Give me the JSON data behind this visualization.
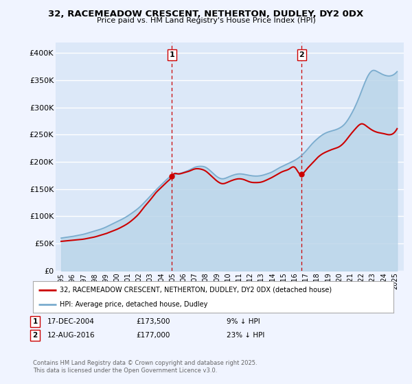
{
  "title": "32, RACEMEADOW CRESCENT, NETHERTON, DUDLEY, DY2 0DX",
  "subtitle": "Price paid vs. HM Land Registry's House Price Index (HPI)",
  "legend_label_red": "32, RACEMEADOW CRESCENT, NETHERTON, DUDLEY, DY2 0DX (detached house)",
  "legend_label_blue": "HPI: Average price, detached house, Dudley",
  "marker1_date": "17-DEC-2004",
  "marker1_price": 173500,
  "marker1_note": "9% ↓ HPI",
  "marker2_date": "12-AUG-2016",
  "marker2_price": 177000,
  "marker2_note": "23% ↓ HPI",
  "ylim": [
    0,
    420000
  ],
  "yticks": [
    0,
    50000,
    100000,
    150000,
    200000,
    250000,
    300000,
    350000,
    400000
  ],
  "ytick_labels": [
    "£0",
    "£50K",
    "£100K",
    "£150K",
    "£200K",
    "£250K",
    "£300K",
    "£350K",
    "£400K"
  ],
  "bg_color": "#f0f4ff",
  "plot_bg_color": "#dce8f8",
  "grid_color": "#ffffff",
  "red_color": "#cc0000",
  "blue_color": "#7aacce",
  "blue_fill_color": "#b8d4e8",
  "vline_color": "#cc0000",
  "footer": "Contains HM Land Registry data © Crown copyright and database right 2025.\nThis data is licensed under the Open Government Licence v3.0.",
  "hpi_x": [
    1995.0,
    1995.5,
    1996.0,
    1996.5,
    1997.0,
    1997.5,
    1998.0,
    1998.5,
    1999.0,
    1999.5,
    2000.0,
    2000.5,
    2001.0,
    2001.5,
    2002.0,
    2002.5,
    2003.0,
    2003.5,
    2004.0,
    2004.5,
    2005.0,
    2005.5,
    2006.0,
    2006.5,
    2007.0,
    2007.5,
    2008.0,
    2008.5,
    2009.0,
    2009.5,
    2010.0,
    2010.5,
    2011.0,
    2011.5,
    2012.0,
    2012.5,
    2013.0,
    2013.5,
    2014.0,
    2014.5,
    2015.0,
    2015.5,
    2016.0,
    2016.5,
    2017.0,
    2017.5,
    2018.0,
    2018.5,
    2019.0,
    2019.5,
    2020.0,
    2020.5,
    2021.0,
    2021.5,
    2022.0,
    2022.5,
    2023.0,
    2023.5,
    2024.0,
    2024.5,
    2025.0
  ],
  "hpi_y": [
    60000,
    61500,
    63000,
    65000,
    67000,
    70000,
    73000,
    76000,
    80000,
    85000,
    90000,
    95000,
    101000,
    108000,
    116000,
    126000,
    137000,
    148000,
    158000,
    168000,
    175000,
    178000,
    181000,
    185000,
    190000,
    192000,
    190000,
    182000,
    173000,
    169000,
    172000,
    176000,
    178000,
    177000,
    175000,
    174000,
    175000,
    178000,
    182000,
    188000,
    193000,
    198000,
    203000,
    210000,
    220000,
    232000,
    242000,
    250000,
    255000,
    258000,
    262000,
    270000,
    285000,
    305000,
    330000,
    355000,
    368000,
    365000,
    360000,
    358000,
    362000
  ],
  "paid_x": [
    1995.0,
    1995.5,
    1996.0,
    1996.5,
    1997.0,
    1997.5,
    1998.0,
    1998.5,
    1999.0,
    1999.5,
    2000.0,
    2000.5,
    2001.0,
    2001.5,
    2002.0,
    2002.5,
    2003.0,
    2003.5,
    2004.0,
    2004.5,
    2004.96,
    2005.0,
    2005.5,
    2006.0,
    2006.5,
    2007.0,
    2007.5,
    2008.0,
    2008.5,
    2009.0,
    2009.5,
    2010.0,
    2010.5,
    2011.0,
    2011.5,
    2012.0,
    2012.5,
    2013.0,
    2013.5,
    2014.0,
    2014.5,
    2015.0,
    2015.5,
    2016.0,
    2016.5,
    2016.62,
    2017.0,
    2017.5,
    2018.0,
    2018.5,
    2019.0,
    2019.5,
    2020.0,
    2020.5,
    2021.0,
    2021.5,
    2022.0,
    2022.5,
    2023.0,
    2023.5,
    2024.0,
    2024.5,
    2025.0
  ],
  "paid_y": [
    54000,
    55000,
    56000,
    57000,
    58000,
    60000,
    62000,
    65000,
    68000,
    72000,
    76000,
    81000,
    87000,
    95000,
    105000,
    118000,
    130000,
    143000,
    153000,
    163000,
    173500,
    175000,
    178000,
    180000,
    183000,
    187000,
    187000,
    183000,
    174000,
    165000,
    160000,
    163000,
    167000,
    169000,
    167000,
    163000,
    162000,
    163000,
    167000,
    172000,
    178000,
    183000,
    187000,
    190000,
    177000,
    177000,
    185000,
    196000,
    207000,
    215000,
    220000,
    224000,
    228000,
    237000,
    250000,
    262000,
    270000,
    265000,
    258000,
    254000,
    252000,
    250000,
    255000
  ],
  "marker1_x": 2004.96,
  "marker1_y": 173500,
  "marker2_x": 2016.62,
  "marker2_y": 177000,
  "xtick_years": [
    1995,
    1996,
    1997,
    1998,
    1999,
    2000,
    2001,
    2002,
    2003,
    2004,
    2005,
    2006,
    2007,
    2008,
    2009,
    2010,
    2011,
    2012,
    2013,
    2014,
    2015,
    2016,
    2017,
    2018,
    2019,
    2020,
    2021,
    2022,
    2023,
    2024,
    2025
  ],
  "xtick_labels": [
    "1995",
    "1996",
    "1997",
    "1998",
    "1999",
    "2000",
    "2001",
    "2002",
    "2003",
    "2004",
    "2005",
    "2006",
    "2007",
    "2008",
    "2009",
    "2010",
    "2011",
    "2012",
    "2013",
    "2014",
    "2015",
    "2016",
    "2017",
    "2018",
    "2019",
    "2020",
    "2021",
    "2022",
    "2023",
    "2024",
    "2025"
  ]
}
